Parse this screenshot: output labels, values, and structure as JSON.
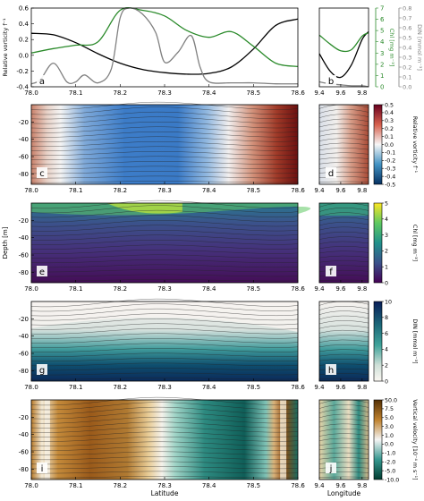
{
  "figure": {
    "xlabel_lat": "Latitude",
    "xlabel_lon": "Longitude",
    "depth_label": "Depth [m]",
    "lat_ticks": [
      "78.0",
      "78.1",
      "78.2",
      "78.3",
      "78.4",
      "78.5",
      "78.6"
    ],
    "lon_ticks": [
      "9.4",
      "9.6",
      "9.8"
    ],
    "depth_ticks": [
      "-20",
      "-40",
      "-60",
      "-80"
    ]
  },
  "chart_data": [
    {
      "panel": "a",
      "type": "line",
      "x_label_ref": "Latitude",
      "xlim": [
        78.0,
        78.6
      ],
      "axes": [
        {
          "label": "Relative vorticity f⁻¹",
          "lim": [
            -0.4,
            0.6
          ],
          "ticks": [
            "0.6",
            "0.4",
            "0.2",
            "0.0",
            "-0.2",
            "-0.4"
          ],
          "color": "#000000",
          "side": "left"
        },
        {
          "label": "Chl [mg m⁻³]",
          "lim": [
            0,
            7
          ],
          "ticks": [
            "7",
            "6",
            "5",
            "4",
            "3",
            "2",
            "1",
            "0"
          ],
          "color": "#2a8a2a",
          "side": "right"
        },
        {
          "label": "DIN [mmol m⁻³]",
          "lim": [
            0,
            0.8
          ],
          "ticks": [
            "0.8",
            "0.7",
            "0.6",
            "0.5",
            "0.4",
            "0.3",
            "0.2",
            "0.1",
            "0.0"
          ],
          "color": "#808080",
          "side": "right2"
        }
      ],
      "series": [
        {
          "axis": 0,
          "color": "#000000",
          "x": [
            78.0,
            78.05,
            78.1,
            78.15,
            78.2,
            78.25,
            78.3,
            78.35,
            78.4,
            78.45,
            78.5,
            78.55,
            78.6
          ],
          "y": [
            0.28,
            0.26,
            0.16,
            0.02,
            -0.1,
            -0.18,
            -0.22,
            -0.24,
            -0.23,
            -0.15,
            0.08,
            0.38,
            0.46
          ]
        },
        {
          "axis": 1,
          "color": "#2a8a2a",
          "x": [
            78.0,
            78.05,
            78.1,
            78.15,
            78.2,
            78.25,
            78.3,
            78.35,
            78.4,
            78.45,
            78.5,
            78.55,
            78.6
          ],
          "y": [
            3.0,
            3.4,
            3.7,
            4.0,
            6.8,
            6.8,
            6.3,
            5.0,
            4.4,
            4.9,
            3.6,
            2.1,
            1.8
          ]
        },
        {
          "axis": 2,
          "color": "#808080",
          "x": [
            78.0,
            78.02,
            78.05,
            78.08,
            78.1,
            78.12,
            78.15,
            78.18,
            78.2,
            78.22,
            78.25,
            78.28,
            78.3,
            78.33,
            78.36,
            78.38,
            78.4,
            78.45,
            78.5,
            78.55,
            78.6
          ],
          "y": [
            0.03,
            0.07,
            0.24,
            0.05,
            0.05,
            0.12,
            0.04,
            0.18,
            0.7,
            0.8,
            0.74,
            0.55,
            0.25,
            0.35,
            0.52,
            0.2,
            0.05,
            0.04,
            0.04,
            0.03,
            0.03
          ]
        }
      ]
    },
    {
      "panel": "b",
      "type": "line",
      "x_label_ref": "Longitude",
      "xlim": [
        9.4,
        9.86
      ],
      "series": [
        {
          "axis": 0,
          "color": "#000000",
          "x": [
            9.4,
            9.5,
            9.6,
            9.7,
            9.8,
            9.86
          ],
          "y": [
            0.02,
            -0.2,
            -0.28,
            -0.12,
            0.2,
            0.3
          ]
        },
        {
          "axis": 1,
          "color": "#2a8a2a",
          "x": [
            9.4,
            9.5,
            9.6,
            9.7,
            9.8,
            9.86
          ],
          "y": [
            4.6,
            3.8,
            3.2,
            3.3,
            4.5,
            4.8
          ]
        },
        {
          "axis": 2,
          "color": "#808080",
          "x": [
            9.4,
            9.5,
            9.6,
            9.7,
            9.8,
            9.86
          ],
          "y": [
            0.05,
            0.03,
            0.02,
            0.01,
            0.01,
            0.0
          ]
        }
      ]
    },
    {
      "panel": "c",
      "panel_right": "d",
      "type": "heatmap",
      "colorbar_label": "Relative vorticity f⁻¹",
      "colorbar_ticks": [
        "0.5",
        "0.4",
        "0.3",
        "0.2",
        "0.1",
        "0.0",
        "-0.1",
        "-0.2",
        "-0.3",
        "-0.4",
        "-0.5"
      ],
      "colormap": "diverging blue-white-red"
    },
    {
      "panel": "e",
      "panel_right": "f",
      "type": "heatmap",
      "colorbar_label": "Chl [mg m⁻³]",
      "colorbar_ticks": [
        "5",
        "4",
        "3",
        "2",
        "1",
        "0"
      ],
      "colormap": "viridis"
    },
    {
      "panel": "g",
      "panel_right": "h",
      "type": "heatmap",
      "colorbar_label": "DIN [mmol m⁻³]",
      "colorbar_ticks": [
        "10",
        "8",
        "6",
        "4",
        "2",
        "0"
      ],
      "colormap": "white-teal-navy"
    },
    {
      "panel": "i",
      "panel_right": "j",
      "type": "heatmap",
      "colorbar_label": "Vertical velocity [10⁻⁴ m s⁻¹]",
      "colorbar_ticks": [
        "50.0",
        "7.5",
        "5.0",
        "3.0",
        "1.0",
        "0.0",
        "-1.0",
        "-2.0",
        "-5.0",
        "-10.0"
      ],
      "colormap": "brown-white-teal (BrBG)"
    }
  ]
}
